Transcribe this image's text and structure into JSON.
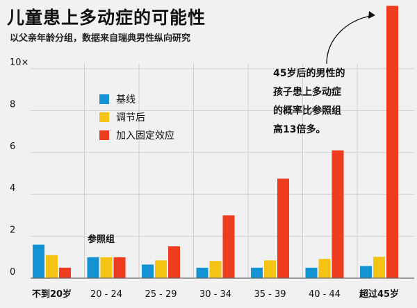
{
  "title": "儿童患上多动症的可能性",
  "subtitle": "以父亲年龄分组，数据来自瑞典男性纵向研究",
  "annotation": {
    "lines": [
      "45岁后的男性的",
      "孩子患上多动症",
      "的概率比参照组",
      "高13倍多。"
    ]
  },
  "reference_label": "参照组",
  "colors": {
    "baseline": "#1493d4",
    "adjusted": "#f5c314",
    "fixed": "#f03c1e",
    "grid": "#d0d0d0",
    "axis": "#666666",
    "text": "#111111"
  },
  "chart_data": {
    "type": "bar",
    "categories": [
      "不到20岁",
      "20 - 24",
      "25 - 29",
      "30 - 34",
      "35 - 39",
      "40 - 44",
      "超过45岁"
    ],
    "series": [
      {
        "name": "基线",
        "color": "#1493d4",
        "values": [
          1.6,
          1.0,
          0.65,
          0.5,
          0.5,
          0.5,
          0.58
        ]
      },
      {
        "name": "调节后",
        "color": "#f5c314",
        "values": [
          1.1,
          1.0,
          0.85,
          0.82,
          0.85,
          0.92,
          1.02
        ]
      },
      {
        "name": "加入固定效应",
        "color": "#f03c1e",
        "values": [
          0.5,
          1.0,
          1.52,
          3.0,
          4.75,
          6.1,
          13.0
        ]
      }
    ],
    "yticks": [
      "0",
      "2",
      "4",
      "6",
      "8",
      "10×"
    ],
    "ylim": [
      0,
      13
    ]
  }
}
